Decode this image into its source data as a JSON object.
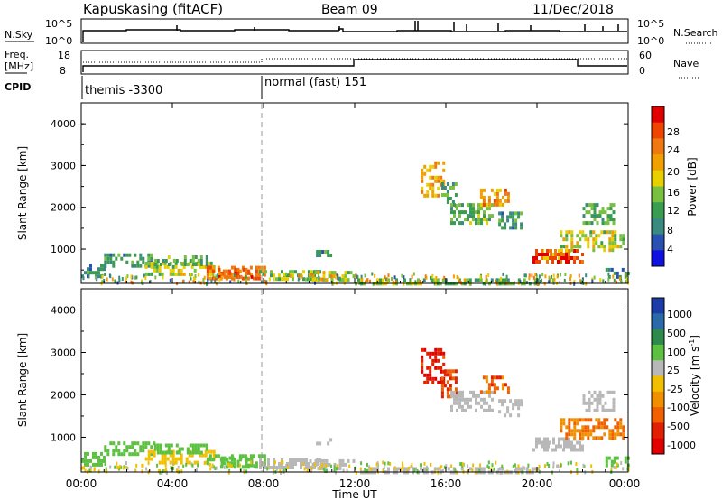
{
  "header": {
    "station": "Kapuskasing (fitACF)",
    "beam": "Beam 09",
    "date": "11/Dec/2018"
  },
  "sky_panel": {
    "left_label": "N.Sky",
    "right_label": "N.Search",
    "left_ticks": [
      "10^5",
      "10^0"
    ],
    "right_ticks": [
      "10^5",
      "10^0"
    ]
  },
  "freq_panel": {
    "left_label_line1": "Freq.",
    "left_label_line2": "[MHz]",
    "right_label": "Nave",
    "left_ticks": [
      "18",
      "8"
    ],
    "right_ticks": [
      "60",
      "0"
    ]
  },
  "cpid": {
    "label": "CPID",
    "modes": [
      "themis -3300",
      "normal (fast) 151"
    ],
    "mode_change_hour": 8
  },
  "x_axis": {
    "label": "Time UT",
    "ticks": [
      "00:00",
      "04:00",
      "08:00",
      "12:00",
      "16:00",
      "20:00",
      "00:00"
    ],
    "hours": [
      0,
      4,
      8,
      12,
      16,
      20,
      24
    ]
  },
  "y_axis": {
    "label": "Slant Range [km]",
    "ticks": [
      "1000",
      "2000",
      "3000",
      "4000"
    ],
    "values": [
      1000,
      2000,
      3000,
      4000
    ],
    "range": [
      180,
      4500
    ]
  },
  "power_colorbar": {
    "title": "Power [dB]",
    "labels": [
      "28",
      "24",
      "20",
      "16",
      "12",
      "8",
      "4"
    ],
    "colors": [
      "#e00000",
      "#ee4400",
      "#f07810",
      "#f0a000",
      "#e8d000",
      "#7ac040",
      "#3a9c50",
      "#3a8a80",
      "#2a50b0",
      "#1010e0"
    ]
  },
  "velocity_colorbar": {
    "title": "Velocity [m s",
    "title_sup": "-1",
    "title_end": "]",
    "labels": [
      "1000",
      "500",
      "100",
      "25",
      "-25",
      "-100",
      "-500",
      "-1000"
    ],
    "colors": [
      "#1c3ca8",
      "#2a6aa8",
      "#2e8a4a",
      "#5cc040",
      "#b8b8b8",
      "#f0c000",
      "#f09000",
      "#f06000",
      "#e02000",
      "#e00000"
    ]
  },
  "chart_data": [
    {
      "type": "heatmap",
      "quantity": "Power",
      "x_unit": "hours UT",
      "y_unit": "km",
      "xlim": [
        0,
        24
      ],
      "ylim": [
        180,
        4500
      ],
      "patches": [
        {
          "t": [
            0.0,
            1.0
          ],
          "r": [
            350,
            650
          ],
          "value": 8
        },
        {
          "t": [
            1.0,
            3.2
          ],
          "r": [
            600,
            900
          ],
          "value": 10
        },
        {
          "t": [
            2.8,
            5.8
          ],
          "r": [
            400,
            700
          ],
          "value": 16
        },
        {
          "t": [
            3.2,
            5.5
          ],
          "r": [
            650,
            850
          ],
          "value": 12
        },
        {
          "t": [
            5.5,
            8.0
          ],
          "r": [
            300,
            600
          ],
          "value": 24
        },
        {
          "t": [
            6.0,
            7.5
          ],
          "r": [
            350,
            550
          ],
          "value": 27
        },
        {
          "t": [
            7.8,
            10.5
          ],
          "r": [
            280,
            500
          ],
          "value": 14
        },
        {
          "t": [
            10.0,
            12.0
          ],
          "r": [
            280,
            480
          ],
          "value": 16
        },
        {
          "t": [
            10.3,
            11.0
          ],
          "r": [
            850,
            980
          ],
          "value": 10
        },
        {
          "t": [
            14.9,
            15.9
          ],
          "r": [
            2300,
            3100
          ],
          "value": 22
        },
        {
          "t": [
            15.8,
            16.5
          ],
          "r": [
            2000,
            2600
          ],
          "value": 10
        },
        {
          "t": [
            16.2,
            18.0
          ],
          "r": [
            1650,
            2100
          ],
          "value": 12
        },
        {
          "t": [
            17.5,
            18.8
          ],
          "r": [
            2050,
            2450
          ],
          "value": 23
        },
        {
          "t": [
            18.3,
            19.3
          ],
          "r": [
            1500,
            1900
          ],
          "value": 10
        },
        {
          "t": [
            20.2,
            21.4
          ],
          "r": [
            800,
            1000
          ],
          "value": 20
        },
        {
          "t": [
            19.8,
            22.0
          ],
          "r": [
            700,
            1000
          ],
          "value": 28
        },
        {
          "t": [
            21.0,
            23.8
          ],
          "r": [
            1000,
            1450
          ],
          "value": 16
        },
        {
          "t": [
            22.0,
            23.4
          ],
          "r": [
            1600,
            2100
          ],
          "value": 11
        },
        {
          "t": [
            23.0,
            24.0
          ],
          "r": [
            300,
            550
          ],
          "value": 8
        },
        {
          "t": [
            12.0,
            15.0
          ],
          "r": [
            200,
            300
          ],
          "value": 14
        },
        {
          "t": [
            15.0,
            20.0
          ],
          "r": [
            200,
            300
          ],
          "value": 11
        }
      ]
    },
    {
      "type": "heatmap",
      "quantity": "Velocity",
      "x_unit": "hours UT",
      "y_unit": "km",
      "xlim": [
        0,
        24
      ],
      "ylim": [
        180,
        4500
      ],
      "patches": [
        {
          "t": [
            0.0,
            1.0
          ],
          "r": [
            350,
            650
          ],
          "value": 50
        },
        {
          "t": [
            1.0,
            3.2
          ],
          "r": [
            600,
            900
          ],
          "value": 60
        },
        {
          "t": [
            2.8,
            5.8
          ],
          "r": [
            400,
            700
          ],
          "value": -60
        },
        {
          "t": [
            3.2,
            5.5
          ],
          "r": [
            650,
            850
          ],
          "value": 60
        },
        {
          "t": [
            5.5,
            8.0
          ],
          "r": [
            300,
            600
          ],
          "value": 60
        },
        {
          "t": [
            6.0,
            7.5
          ],
          "r": [
            350,
            550
          ],
          "value": 70
        },
        {
          "t": [
            7.8,
            10.5
          ],
          "r": [
            280,
            500
          ],
          "value": 0
        },
        {
          "t": [
            10.0,
            12.0
          ],
          "r": [
            280,
            480
          ],
          "value": 0
        },
        {
          "t": [
            10.3,
            11.0
          ],
          "r": [
            850,
            980
          ],
          "value": 0
        },
        {
          "t": [
            14.9,
            15.9
          ],
          "r": [
            2300,
            3100
          ],
          "value": -700
        },
        {
          "t": [
            15.8,
            16.5
          ],
          "r": [
            2000,
            2600
          ],
          "value": -500
        },
        {
          "t": [
            16.2,
            18.0
          ],
          "r": [
            1650,
            2100
          ],
          "value": 0
        },
        {
          "t": [
            17.5,
            18.8
          ],
          "r": [
            2050,
            2450
          ],
          "value": -400
        },
        {
          "t": [
            18.3,
            19.3
          ],
          "r": [
            1500,
            1900
          ],
          "value": 0
        },
        {
          "t": [
            20.2,
            21.4
          ],
          "r": [
            800,
            1000
          ],
          "value": 0
        },
        {
          "t": [
            19.8,
            22.0
          ],
          "r": [
            700,
            1000
          ],
          "value": 0
        },
        {
          "t": [
            21.0,
            23.8
          ],
          "r": [
            1000,
            1450
          ],
          "value": -300
        },
        {
          "t": [
            22.0,
            23.4
          ],
          "r": [
            1600,
            2100
          ],
          "value": 0
        },
        {
          "t": [
            23.0,
            24.0
          ],
          "r": [
            300,
            550
          ],
          "value": 50
        },
        {
          "t": [
            12.0,
            15.0
          ],
          "r": [
            200,
            300
          ],
          "value": 0
        },
        {
          "t": [
            15.0,
            20.0
          ],
          "r": [
            200,
            300
          ],
          "value": 0
        }
      ]
    }
  ]
}
